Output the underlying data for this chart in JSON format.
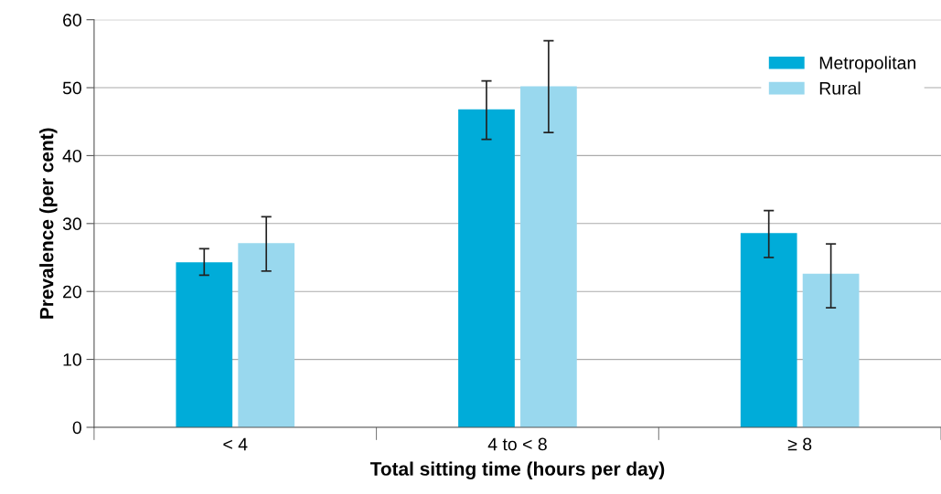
{
  "chart_data": {
    "type": "bar",
    "xlabel": "Total sitting time (hours per day)",
    "ylabel": "Prevalence (per cent)",
    "categories": [
      "< 4",
      "4 to < 8",
      "≥ 8"
    ],
    "series": [
      {
        "name": "Metropolitan",
        "color": "#00acd9",
        "values": [
          24.3,
          46.8,
          28.6
        ],
        "errors": [
          [
            22.4,
            26.3
          ],
          [
            42.4,
            51.0
          ],
          [
            25.0,
            31.9
          ]
        ]
      },
      {
        "name": "Rural",
        "color": "#99d8ee",
        "values": [
          27.1,
          50.2,
          22.6
        ],
        "errors": [
          [
            23.0,
            31.0
          ],
          [
            43.4,
            56.9
          ],
          [
            17.6,
            27.0
          ]
        ]
      }
    ],
    "ylim": [
      0,
      60
    ],
    "yticks": [
      0,
      10,
      20,
      30,
      40,
      50,
      60
    ],
    "grid": "y",
    "legend": "top right"
  }
}
